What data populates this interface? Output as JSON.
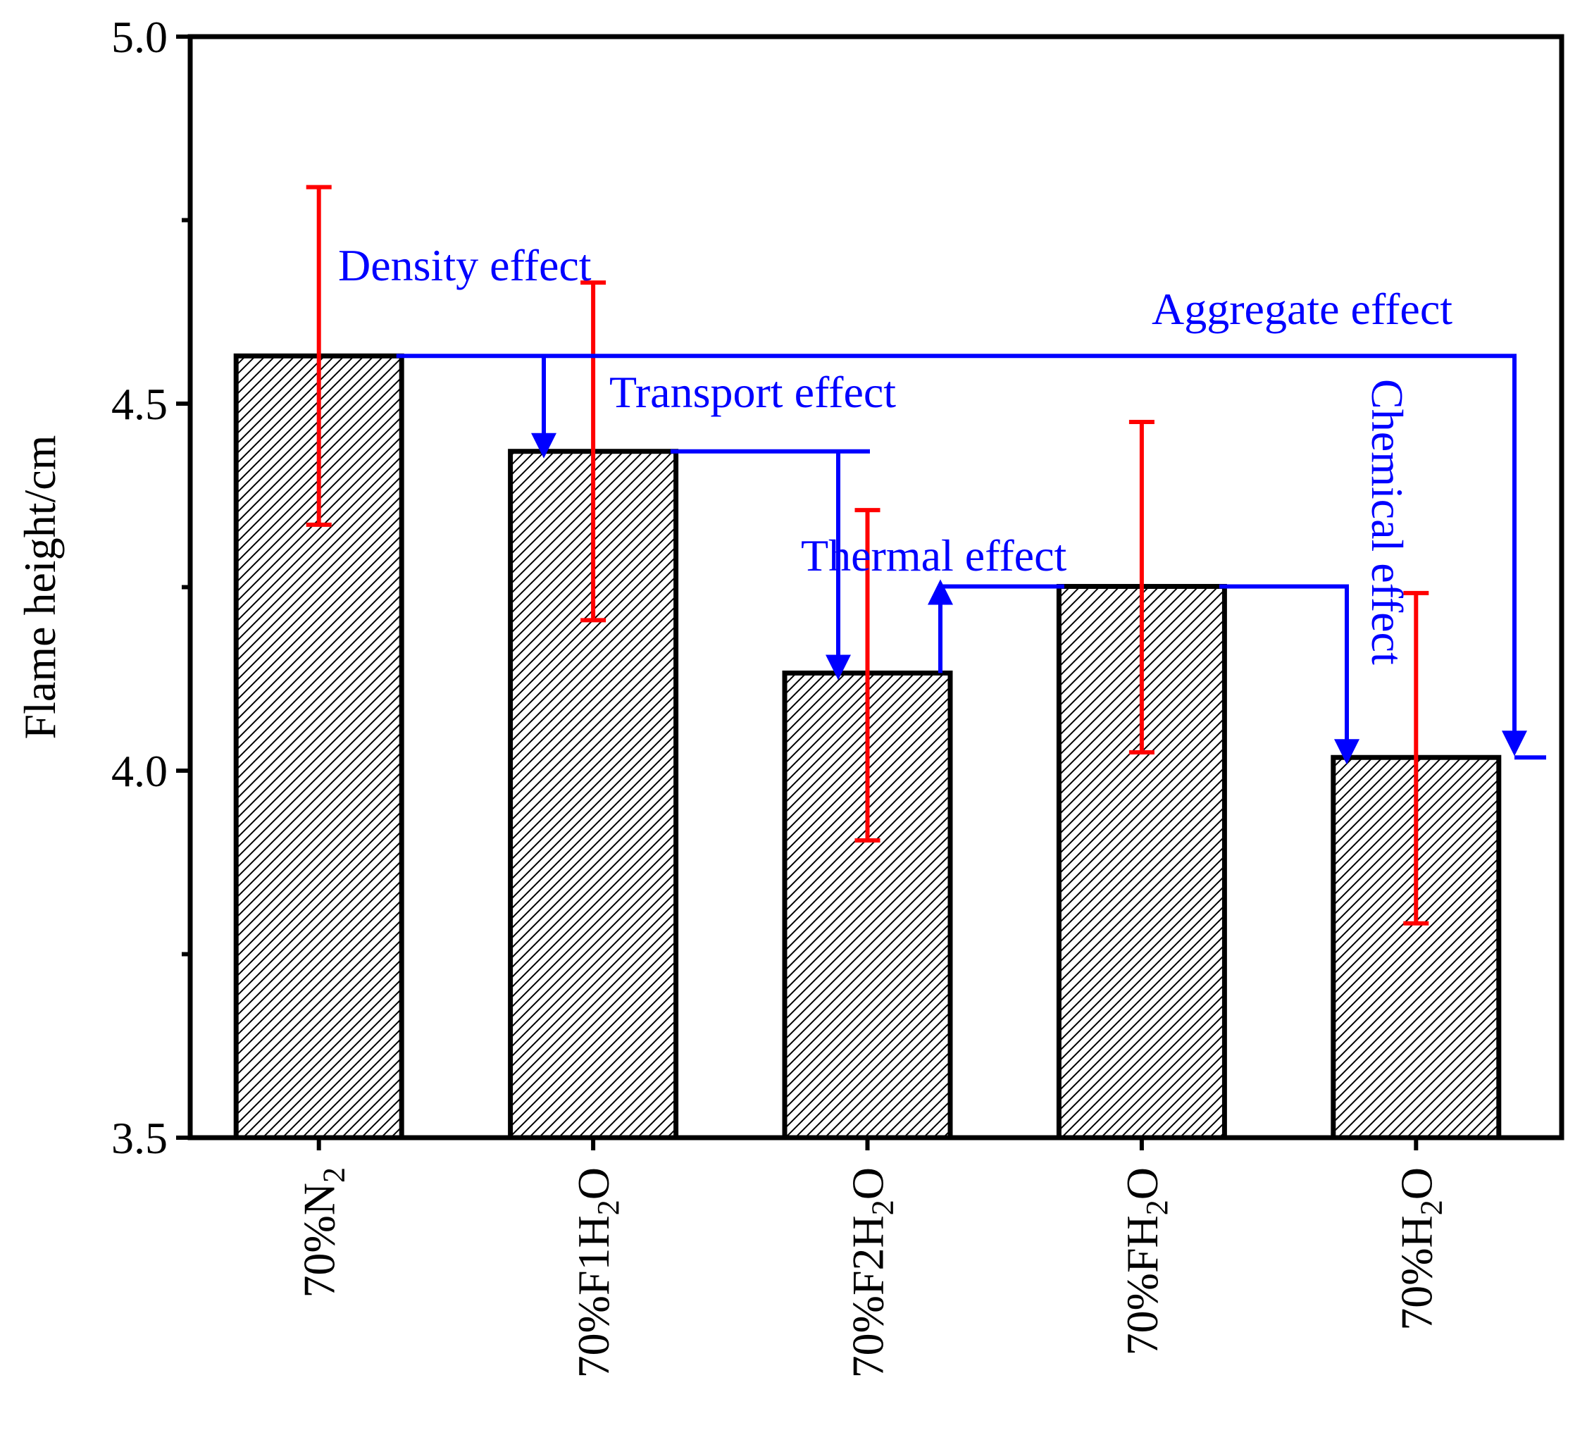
{
  "chart_data": {
    "type": "bar",
    "ylabel": "Flame height/cm",
    "xlabel": "",
    "ylim": [
      3.5,
      5.0
    ],
    "yticks": [
      "3.5",
      "4.0",
      "4.5",
      "5.0"
    ],
    "categories": [
      {
        "prefix": "70%",
        "main": "N",
        "sub": "2",
        "suffix": ""
      },
      {
        "prefix": "70%",
        "main": "F1H",
        "sub": "2",
        "suffix": "O"
      },
      {
        "prefix": "70%",
        "main": "F2H",
        "sub": "2",
        "suffix": "O"
      },
      {
        "prefix": "70%",
        "main": "FH",
        "sub": "2",
        "suffix": "O"
      },
      {
        "prefix": "70%",
        "main": "H",
        "sub": "2",
        "suffix": "O"
      }
    ],
    "values": [
      4.565,
      4.435,
      4.133,
      4.251,
      4.018
    ],
    "error_low": [
      4.335,
      4.205,
      3.905,
      4.025,
      3.792
    ],
    "error_high": [
      4.795,
      4.665,
      4.355,
      4.475,
      4.242
    ],
    "annotations": [
      {
        "id": "density",
        "text": "Density effect"
      },
      {
        "id": "transport",
        "text": "Transport effect"
      },
      {
        "id": "thermal",
        "text": "Thermal effect"
      },
      {
        "id": "chemical",
        "text": "Chemical effect"
      },
      {
        "id": "aggregate",
        "text": "Aggregate effect"
      }
    ],
    "colors": {
      "bar_edge": "#000000",
      "hatch": "#000000",
      "error_bar": "#ff0000",
      "annotation": "#0000ff",
      "axis": "#000000"
    }
  }
}
